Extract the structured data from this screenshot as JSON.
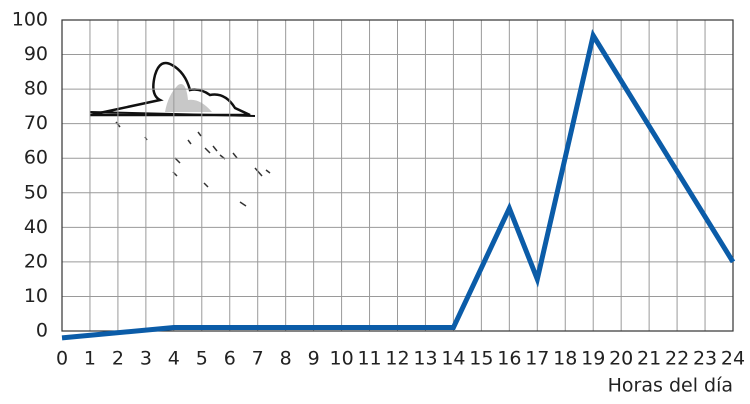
{
  "chart_data": {
    "type": "line",
    "x_label": "Horas del día",
    "x": [
      0,
      4,
      14,
      16,
      17,
      19,
      24
    ],
    "series": [
      {
        "color": "#0b5ca8",
        "values": [
          -2,
          1,
          1,
          35.5,
          15,
          85.5,
          20
        ]
      }
    ],
    "xlim": [
      0,
      24
    ],
    "xticks": [
      0,
      1,
      2,
      3,
      4,
      5,
      6,
      7,
      8,
      9,
      10,
      11,
      12,
      13,
      14,
      15,
      16,
      17,
      18,
      19,
      20,
      21,
      22,
      23,
      24
    ],
    "ylim": [
      0,
      90
    ],
    "yticks": [
      0,
      10,
      20,
      {
        "value": 30,
        "label": "40"
      },
      {
        "value": 40,
        "label": "50"
      },
      {
        "value": 50,
        "label": "60"
      },
      {
        "value": 60,
        "label": "70"
      },
      {
        "value": 70,
        "label": "80"
      },
      {
        "value": 80,
        "label": "90"
      },
      {
        "value": 90,
        "label": "100"
      }
    ],
    "grid": true
  }
}
